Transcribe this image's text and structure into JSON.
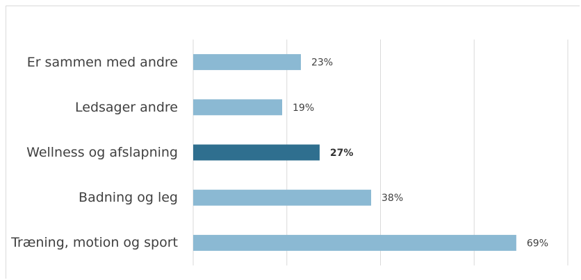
{
  "chart_data": {
    "type": "hbar",
    "categories": [
      "Er sammen med andre",
      "Ledsager andre",
      "Wellness og afslapning",
      "Badning og leg",
      "Træning, motion og sport"
    ],
    "values": [
      23,
      19,
      27,
      38,
      69
    ],
    "value_labels": [
      "23%",
      "19%",
      "27%",
      "38%",
      "69%"
    ],
    "colors": [
      "#8bb9d3",
      "#8bb9d3",
      "#2f6f8f",
      "#8bb9d3",
      "#8bb9d3"
    ],
    "highlight_color": "#2f6f8f",
    "xlim": [
      0,
      80
    ],
    "xticks": [
      0,
      20,
      40,
      60,
      80
    ],
    "grid": true
  }
}
